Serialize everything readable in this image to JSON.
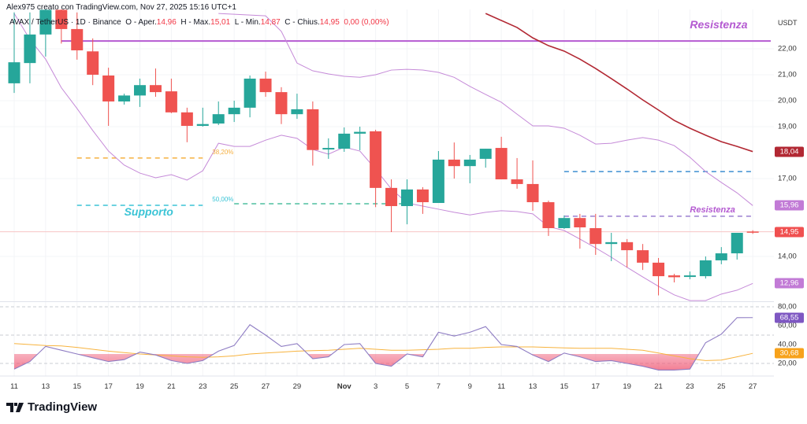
{
  "header": {
    "credit": "Alex975 creato con TradingView.com, Nov 27, 2025 15:16 UTC+1"
  },
  "legend": {
    "symbol": "AVAX / TetherUS · 1D · Binance",
    "open_label": "O - Aper.",
    "open": "14,96",
    "high_label": "H - Max.",
    "high": "15,01",
    "low_label": "L - Min.",
    "low": "14,87",
    "close_label": "C - Chius.",
    "close": "14,95",
    "change": "0,00 (0,00%)"
  },
  "logo": {
    "text": "TradingView"
  },
  "colors": {
    "up": "#26a69a",
    "down": "#ef5350",
    "bands": "#c58ad8",
    "ma": "#b22833",
    "rsi": "#8e7cc3",
    "rsi_ma": "#f7b33e",
    "resistance": "#b45ad1",
    "support": "#3bc4d6",
    "fib382": "#f5b041",
    "blue_level": "#3d8fd1"
  },
  "chart_data": [
    {
      "type": "candlestick",
      "title": "AVAX / TetherUS · 1D · Binance",
      "currency": "USDT",
      "ylim": [
        11.6,
        23.9
      ],
      "y_ticks": [
        {
          "value": 22,
          "label": "22,00"
        },
        {
          "value": 21,
          "label": "21,00"
        },
        {
          "value": 20,
          "label": "20,00"
        },
        {
          "value": 19,
          "label": "19,00"
        },
        {
          "value": 17,
          "label": "17,00"
        },
        {
          "value": 14,
          "label": "14,00"
        }
      ],
      "x_ticks": [
        {
          "date": "2025-10-11",
          "label": "11"
        },
        {
          "date": "2025-10-13",
          "label": "13"
        },
        {
          "date": "2025-10-15",
          "label": "15"
        },
        {
          "date": "2025-10-17",
          "label": "17"
        },
        {
          "date": "2025-10-19",
          "label": "19"
        },
        {
          "date": "2025-10-21",
          "label": "21"
        },
        {
          "date": "2025-10-23",
          "label": "23"
        },
        {
          "date": "2025-10-25",
          "label": "25"
        },
        {
          "date": "2025-10-27",
          "label": "27"
        },
        {
          "date": "2025-10-29",
          "label": "29"
        },
        {
          "date": "2025-11-01",
          "label": "Nov",
          "bold": true
        },
        {
          "date": "2025-11-03",
          "label": "3"
        },
        {
          "date": "2025-11-05",
          "label": "5"
        },
        {
          "date": "2025-11-07",
          "label": "7"
        },
        {
          "date": "2025-11-09",
          "label": "9"
        },
        {
          "date": "2025-11-11",
          "label": "11"
        },
        {
          "date": "2025-11-13",
          "label": "13"
        },
        {
          "date": "2025-11-15",
          "label": "15"
        },
        {
          "date": "2025-11-17",
          "label": "17"
        },
        {
          "date": "2025-11-19",
          "label": "19"
        },
        {
          "date": "2025-11-21",
          "label": "21"
        },
        {
          "date": "2025-11-23",
          "label": "23"
        },
        {
          "date": "2025-11-25",
          "label": "25"
        },
        {
          "date": "2025-11-27",
          "label": "27"
        }
      ],
      "candles_columns": [
        "date",
        "open",
        "high",
        "low",
        "close"
      ],
      "candles": [
        [
          "2025-10-11",
          20.67,
          23.4,
          20.3,
          21.48
        ],
        [
          "2025-10-12",
          21.45,
          23.4,
          20.67,
          22.55
        ],
        [
          "2025-10-13",
          22.55,
          23.6,
          21.7,
          23.5
        ],
        [
          "2025-10-14",
          23.5,
          23.6,
          22.2,
          22.76
        ],
        [
          "2025-10-15",
          22.76,
          23.4,
          21.58,
          21.94
        ],
        [
          "2025-10-16",
          21.9,
          22.4,
          20.6,
          21.0
        ],
        [
          "2025-10-17",
          20.97,
          21.27,
          19.03,
          19.97
        ],
        [
          "2025-10-18",
          19.97,
          20.27,
          19.85,
          20.2
        ],
        [
          "2025-10-19",
          20.2,
          20.85,
          19.76,
          20.6
        ],
        [
          "2025-10-20",
          20.6,
          21.24,
          20.15,
          20.33
        ],
        [
          "2025-10-21",
          20.36,
          20.85,
          19.52,
          19.55
        ],
        [
          "2025-10-22",
          19.55,
          19.73,
          18.4,
          19.03
        ],
        [
          "2025-10-23",
          19.03,
          19.73,
          19.0,
          19.1
        ],
        [
          "2025-10-24",
          19.12,
          19.97,
          19.06,
          19.48
        ],
        [
          "2025-10-25",
          19.48,
          20.0,
          19.18,
          19.73
        ],
        [
          "2025-10-26",
          19.73,
          20.97,
          19.36,
          20.85
        ],
        [
          "2025-10-27",
          20.85,
          21.12,
          20.15,
          20.33
        ],
        [
          "2025-10-28",
          20.33,
          20.52,
          19.1,
          19.48
        ],
        [
          "2025-10-29",
          19.48,
          20.27,
          19.3,
          19.67
        ],
        [
          "2025-10-30",
          19.67,
          19.97,
          17.5,
          18.1
        ],
        [
          "2025-10-31",
          18.12,
          18.55,
          17.76,
          18.18
        ],
        [
          "2025-11-01",
          18.15,
          18.97,
          18.03,
          18.73
        ],
        [
          "2025-11-02",
          18.73,
          19.0,
          18.09,
          18.8
        ],
        [
          "2025-11-03",
          18.82,
          18.88,
          15.9,
          16.64
        ],
        [
          "2025-11-04",
          16.64,
          16.97,
          14.94,
          15.94
        ],
        [
          "2025-11-05",
          15.94,
          16.97,
          15.24,
          16.58
        ],
        [
          "2025-11-06",
          16.58,
          16.67,
          15.64,
          16.09
        ],
        [
          "2025-11-07",
          16.06,
          18.06,
          16.06,
          17.73
        ],
        [
          "2025-11-08",
          17.73,
          18.39,
          17.0,
          17.48
        ],
        [
          "2025-11-09",
          17.48,
          17.91,
          16.82,
          17.73
        ],
        [
          "2025-11-10",
          17.76,
          18.15,
          17.42,
          18.15
        ],
        [
          "2025-11-11",
          18.18,
          18.61,
          16.97,
          16.97
        ],
        [
          "2025-11-12",
          16.97,
          17.79,
          16.61,
          16.79
        ],
        [
          "2025-11-13",
          16.79,
          17.7,
          15.76,
          16.09
        ],
        [
          "2025-11-14",
          16.09,
          16.15,
          14.79,
          15.09
        ],
        [
          "2025-11-15",
          15.09,
          15.58,
          15.06,
          15.48
        ],
        [
          "2025-11-16",
          15.48,
          15.64,
          14.3,
          15.12
        ],
        [
          "2025-11-17",
          15.09,
          15.64,
          14.06,
          14.48
        ],
        [
          "2025-11-18",
          14.48,
          14.91,
          13.82,
          14.55
        ],
        [
          "2025-11-19",
          14.55,
          14.67,
          13.58,
          14.24
        ],
        [
          "2025-11-20",
          14.24,
          14.48,
          13.48,
          13.76
        ],
        [
          "2025-11-21",
          13.76,
          13.94,
          12.5,
          13.24
        ],
        [
          "2025-11-22",
          13.27,
          13.33,
          13.0,
          13.2
        ],
        [
          "2025-11-23",
          13.21,
          13.42,
          13.12,
          13.27
        ],
        [
          "2025-11-24",
          13.24,
          14.0,
          13.15,
          13.85
        ],
        [
          "2025-11-25",
          13.85,
          14.36,
          13.7,
          14.12
        ],
        [
          "2025-11-26",
          14.12,
          14.91,
          13.88,
          14.91
        ],
        [
          "2025-11-27",
          14.96,
          15.01,
          14.87,
          14.95
        ]
      ],
      "upper_band": [
        [
          "2025-10-24",
          23.36
        ],
        [
          "2025-10-27",
          23.27
        ],
        [
          "2025-10-28",
          22.67
        ],
        [
          "2025-10-29",
          21.45
        ],
        [
          "2025-10-30",
          21.15
        ],
        [
          "2025-10-31",
          21.03
        ],
        [
          "2025-11-01",
          20.94
        ],
        [
          "2025-11-02",
          20.9
        ],
        [
          "2025-11-03",
          21.0
        ],
        [
          "2025-11-04",
          21.18
        ],
        [
          "2025-11-05",
          21.21
        ],
        [
          "2025-11-06",
          21.18
        ],
        [
          "2025-11-07",
          21.09
        ],
        [
          "2025-11-08",
          20.9
        ],
        [
          "2025-11-09",
          20.55
        ],
        [
          "2025-11-10",
          20.24
        ],
        [
          "2025-11-11",
          19.94
        ],
        [
          "2025-11-12",
          19.48
        ],
        [
          "2025-11-13",
          19.03
        ],
        [
          "2025-11-14",
          19.03
        ],
        [
          "2025-11-15",
          18.94
        ],
        [
          "2025-11-16",
          18.67
        ],
        [
          "2025-11-17",
          18.33
        ],
        [
          "2025-11-18",
          18.36
        ],
        [
          "2025-11-19",
          18.48
        ],
        [
          "2025-11-20",
          18.58
        ],
        [
          "2025-11-21",
          18.48
        ],
        [
          "2025-11-22",
          18.27
        ],
        [
          "2025-11-23",
          17.82
        ],
        [
          "2025-11-24",
          17.27
        ],
        [
          "2025-11-25",
          16.85
        ],
        [
          "2025-11-26",
          16.45
        ],
        [
          "2025-11-27",
          15.96
        ]
      ],
      "lower_band": [
        [
          "2025-10-11",
          23.36
        ],
        [
          "2025-10-12",
          22.36
        ],
        [
          "2025-10-13",
          21.6
        ],
        [
          "2025-10-14",
          20.5
        ],
        [
          "2025-10-15",
          19.7
        ],
        [
          "2025-10-16",
          18.85
        ],
        [
          "2025-10-17",
          18.06
        ],
        [
          "2025-10-18",
          17.52
        ],
        [
          "2025-10-19",
          17.21
        ],
        [
          "2025-10-20",
          17.03
        ],
        [
          "2025-10-21",
          17.15
        ],
        [
          "2025-10-22",
          16.94
        ],
        [
          "2025-10-23",
          17.3
        ],
        [
          "2025-10-24",
          18.36
        ],
        [
          "2025-10-25",
          18.24
        ],
        [
          "2025-10-26",
          18.24
        ],
        [
          "2025-10-27",
          18.48
        ],
        [
          "2025-10-28",
          18.67
        ],
        [
          "2025-10-29",
          18.55
        ],
        [
          "2025-10-30",
          18.12
        ],
        [
          "2025-10-31",
          17.94
        ],
        [
          "2025-11-01",
          18.21
        ],
        [
          "2025-11-02",
          18.06
        ],
        [
          "2025-11-03",
          17.36
        ],
        [
          "2025-11-04",
          16.6
        ],
        [
          "2025-11-05",
          16.06
        ],
        [
          "2025-11-06",
          15.94
        ],
        [
          "2025-11-07",
          15.82
        ],
        [
          "2025-11-08",
          15.7
        ],
        [
          "2025-11-09",
          15.6
        ],
        [
          "2025-11-10",
          15.7
        ],
        [
          "2025-11-11",
          15.76
        ],
        [
          "2025-11-12",
          15.73
        ],
        [
          "2025-11-13",
          15.64
        ],
        [
          "2025-11-14",
          15.15
        ],
        [
          "2025-11-15",
          15.0
        ],
        [
          "2025-11-16",
          14.67
        ],
        [
          "2025-11-17",
          14.33
        ],
        [
          "2025-11-18",
          13.97
        ],
        [
          "2025-11-19",
          13.58
        ],
        [
          "2025-11-20",
          13.21
        ],
        [
          "2025-11-21",
          12.85
        ],
        [
          "2025-11-22",
          12.52
        ],
        [
          "2025-11-23",
          12.3
        ],
        [
          "2025-11-24",
          12.3
        ],
        [
          "2025-11-25",
          12.55
        ],
        [
          "2025-11-26",
          12.7
        ],
        [
          "2025-11-27",
          12.96
        ]
      ],
      "moving_average": [
        [
          "2025-11-10",
          23.36
        ],
        [
          "2025-11-12",
          22.82
        ],
        [
          "2025-11-13",
          22.42
        ],
        [
          "2025-11-14",
          22.12
        ],
        [
          "2025-11-15",
          21.91
        ],
        [
          "2025-11-16",
          21.6
        ],
        [
          "2025-11-17",
          21.24
        ],
        [
          "2025-11-18",
          20.85
        ],
        [
          "2025-11-19",
          20.45
        ],
        [
          "2025-11-20",
          20.03
        ],
        [
          "2025-11-21",
          19.64
        ],
        [
          "2025-11-22",
          19.24
        ],
        [
          "2025-11-23",
          18.94
        ],
        [
          "2025-11-24",
          18.67
        ],
        [
          "2025-11-25",
          18.42
        ],
        [
          "2025-11-26",
          18.24
        ],
        [
          "2025-11-27",
          18.04
        ]
      ],
      "levels": [
        {
          "name": "resistance-line",
          "price": 22.3,
          "from": "2025-10-14",
          "to": "end",
          "style": "solid",
          "color": "#b45ad1"
        },
        {
          "name": "fib-382-line",
          "price": 17.79,
          "from": "2025-10-15",
          "to": "2025-10-23",
          "style": "dashed",
          "color": "#f5b041",
          "label": "38,20%"
        },
        {
          "name": "fib-50-line",
          "price": 15.97,
          "from": "2025-10-15",
          "to": "2025-10-23",
          "style": "dashed",
          "color": "#3bc4d6",
          "label": "50,00%"
        },
        {
          "name": "fib-50-extension-line",
          "price": 16.03,
          "from": "2025-10-25",
          "to": "2025-11-05",
          "style": "dashed",
          "color": "#4fbf9f"
        },
        {
          "name": "blue-level-line",
          "price": 17.27,
          "from": "2025-11-15",
          "to": "2025-11-27",
          "style": "dashed",
          "color": "#3d8fd1"
        },
        {
          "name": "resistance-dashed-line",
          "price": 15.55,
          "from": "2025-11-15",
          "to": "2025-11-27",
          "style": "dashed",
          "color": "#9b7fd1"
        }
      ],
      "annotations": [
        {
          "text": "Resistenza",
          "price": 22.9,
          "date": "2025-11-23",
          "color": "#b45ad1",
          "size": "large"
        },
        {
          "text": "Supporto",
          "price": 15.7,
          "date": "2025-10-18",
          "color": "#3bc4d6",
          "size": "large"
        },
        {
          "text": "Resistenza",
          "price": 15.8,
          "date": "2025-11-23",
          "color": "#b45ad1",
          "size": "small"
        }
      ],
      "price_badges": [
        {
          "value": 18.04,
          "label": "18,04",
          "color": "#b22833"
        },
        {
          "value": 15.96,
          "label": "15,96",
          "color": "#c27bd6"
        },
        {
          "value": 14.95,
          "label": "14,95",
          "color": "#f05050"
        },
        {
          "value": 12.96,
          "label": "12,96",
          "color": "#c27bd6"
        }
      ],
      "last_price": 14.95
    },
    {
      "type": "line",
      "indicator": "RSI",
      "ylim": [
        5,
        88
      ],
      "y_ticks": [
        {
          "value": 80,
          "label": "80,00"
        },
        {
          "value": 60,
          "label": "60,00"
        },
        {
          "value": 40,
          "label": "40,00"
        },
        {
          "value": 20,
          "label": "20,00"
        }
      ],
      "bands": [
        80,
        50,
        20
      ],
      "oversold_fill_below": 30,
      "rsi": [
        14,
        22,
        38,
        34,
        30,
        26,
        22,
        24,
        32,
        29,
        23,
        20,
        23,
        33,
        39,
        61,
        50,
        38,
        41,
        25,
        27,
        40,
        41,
        20,
        17,
        30,
        27,
        53,
        49,
        53,
        59,
        40,
        38,
        29,
        22,
        31,
        27,
        22,
        23,
        20,
        17,
        13,
        13,
        14,
        42,
        51,
        68.5,
        68.55
      ],
      "rsi_ma": [
        41,
        40,
        39,
        38.5,
        37,
        35,
        33,
        31.5,
        30,
        29,
        28,
        27,
        26.5,
        27,
        28,
        30,
        31,
        32,
        33,
        33.5,
        34,
        35,
        36,
        35,
        34,
        34,
        34.5,
        35,
        36,
        36,
        37,
        37.5,
        37.5,
        37.5,
        37,
        36.5,
        36,
        36,
        36,
        35,
        34,
        31,
        28,
        25,
        23,
        23.5,
        27,
        30.68
      ],
      "badges": [
        {
          "value": 68.55,
          "label": "68,55",
          "color": "#7e57c2"
        },
        {
          "value": 30.68,
          "label": "30,68",
          "color": "#f7a21b"
        }
      ]
    }
  ]
}
